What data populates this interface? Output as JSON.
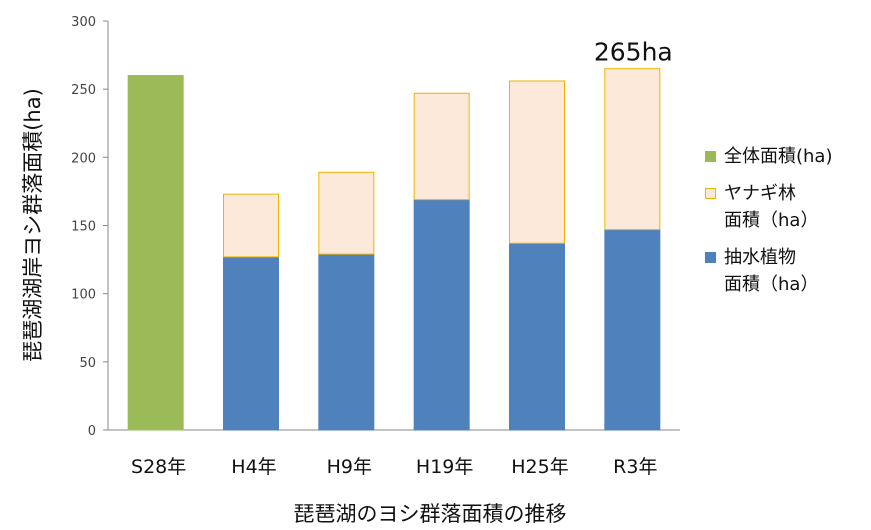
{
  "chart_data": {
    "type": "bar",
    "stacked": true,
    "ylabel": "琵琶湖湖岸ヨシ群落面積(ha)",
    "xlabel": "琵琶湖のヨシ群落面積の推移",
    "ylim": [
      0,
      300
    ],
    "yticks": [
      0,
      50,
      100,
      150,
      200,
      250,
      300
    ],
    "categories": [
      "S28年",
      "H4年",
      "H9年",
      "H19年",
      "H25年",
      "R3年"
    ],
    "series": [
      {
        "name": "全体面積(ha)",
        "color": "#9bbb59",
        "border": "#9bbb59",
        "values": [
          260,
          0,
          0,
          0,
          0,
          0
        ]
      },
      {
        "name": "抽水植物\n面積（ha）",
        "color": "#4f81bd",
        "border": "#4f81bd",
        "values": [
          0,
          127,
          129,
          169,
          137,
          147
        ]
      },
      {
        "name": "ヤナギ林\n面積（ha）",
        "color": "#fde9d9",
        "border": "#f0b400",
        "values": [
          0,
          46,
          60,
          78,
          119,
          118
        ]
      }
    ],
    "annotations": [
      {
        "category": "R3年",
        "text": "265ha"
      }
    ],
    "grid": false,
    "legend": "right"
  },
  "legend_items": [
    {
      "label": "全体面積(ha)",
      "color": "#9bbb59",
      "border": "#9bbb59"
    },
    {
      "label": "ヤナギ林\n面積（ha）",
      "color": "#fde9d9",
      "border": "#f0b400"
    },
    {
      "label": "抽水植物\n面積（ha）",
      "color": "#4f81bd",
      "border": "#4f81bd"
    }
  ]
}
